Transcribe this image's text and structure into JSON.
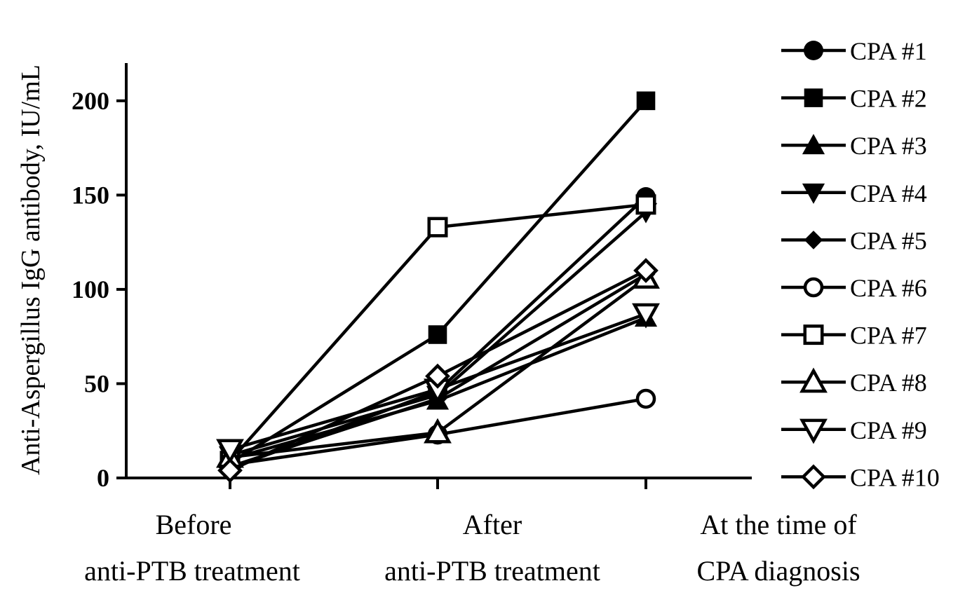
{
  "chart_data": {
    "type": "line",
    "categories": [
      [
        "Before",
        "anti-PTB treatment"
      ],
      [
        "After",
        "anti-PTB treatment"
      ],
      [
        "At the time of",
        "CPA diagnosis"
      ]
    ],
    "xlabel": "",
    "ylabel": "Anti-Aspergillus IgG antibody, IU/mL",
    "ylim": [
      0,
      220
    ],
    "yticks": [
      0,
      50,
      100,
      150,
      200
    ],
    "grid": false,
    "legend_position": "right",
    "color": "#000000",
    "series": [
      {
        "name": "CPA #1",
        "marker": "circle-filled",
        "values": [
          5,
          46,
          149
        ]
      },
      {
        "name": "CPA #2",
        "marker": "square-filled",
        "values": [
          8,
          76,
          200
        ]
      },
      {
        "name": "CPA #3",
        "marker": "triangle-up-filled",
        "values": [
          10,
          41,
          85
        ]
      },
      {
        "name": "CPA #4",
        "marker": "triangle-down-filled",
        "values": [
          12,
          44,
          141
        ]
      },
      {
        "name": "CPA #5",
        "marker": "diamond-filled",
        "values": [
          6,
          42,
          108
        ]
      },
      {
        "name": "CPA #6",
        "marker": "circle-open",
        "values": [
          7,
          23,
          42
        ]
      },
      {
        "name": "CPA #7",
        "marker": "square-open",
        "values": [
          9,
          133,
          145
        ]
      },
      {
        "name": "CPA #8",
        "marker": "triangle-up-open",
        "values": [
          11,
          24,
          106
        ]
      },
      {
        "name": "CPA #9",
        "marker": "triangle-down-open",
        "values": [
          15,
          47,
          87
        ]
      },
      {
        "name": "CPA #10",
        "marker": "diamond-open",
        "values": [
          4,
          54,
          110
        ]
      }
    ]
  }
}
